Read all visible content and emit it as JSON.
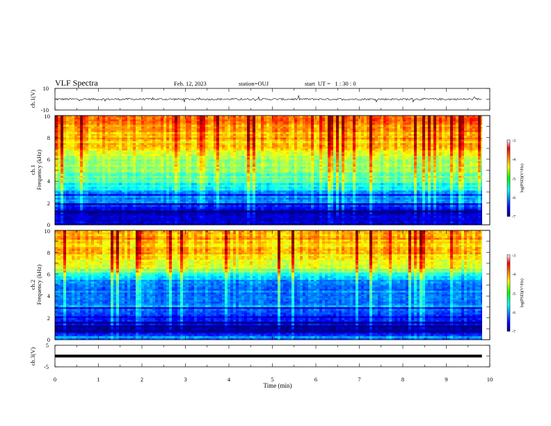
{
  "header": {
    "title": "VLF Spectra",
    "date": "Feb. 12, 2023",
    "station": "station=OUJ",
    "start": "start  UT =   1 : 30 : 0"
  },
  "chart_data": [
    {
      "type": "line",
      "panel": "ch1-waveform",
      "ylabel": "ch.1(V)",
      "ylim": [
        -10,
        10
      ],
      "y_ticks": [
        "10",
        "-10"
      ],
      "x_range": [
        0,
        10
      ],
      "data_end": 9.82,
      "baseline": 0,
      "trace_color": "#000000"
    },
    {
      "type": "heatmap",
      "panel": "ch1-spectrogram",
      "ylabel_line1": "ch.1",
      "ylabel_line2": "Frequency (kHz)",
      "ylim": [
        0,
        10
      ],
      "y_ticks": [
        "0",
        "2",
        "4",
        "6",
        "8",
        "10"
      ],
      "x_range": [
        0,
        10
      ],
      "data_end": 9.82,
      "colorbar": {
        "ticks": [
          "-3",
          "-4",
          "-5",
          "-6",
          "-7"
        ],
        "label": "log(PSD)(V²/Hz)",
        "range": [
          -7,
          -3
        ]
      },
      "level_by_frequency_khz": [
        [
          0,
          -6.6
        ],
        [
          1.2,
          -6.9
        ],
        [
          2,
          -6.1
        ],
        [
          3,
          -5.8
        ],
        [
          4,
          -5.2
        ],
        [
          5,
          -5.0
        ],
        [
          6,
          -4.7
        ],
        [
          7,
          -4.4
        ],
        [
          8,
          -4.2
        ],
        [
          10,
          -4.0
        ]
      ]
    },
    {
      "type": "heatmap",
      "panel": "ch2-spectrogram",
      "ylabel_line1": "ch.2",
      "ylabel_line2": "Frequency (kHz)",
      "ylim": [
        0,
        10
      ],
      "y_ticks": [
        "0",
        "2",
        "4",
        "6",
        "8",
        "10"
      ],
      "x_range": [
        0,
        10
      ],
      "data_end": 9.82,
      "colorbar": {
        "ticks": [
          "-3",
          "-4",
          "-5",
          "-6",
          "-7"
        ],
        "label": "log(PSD)(V²/Hz)",
        "range": [
          -7,
          -3
        ]
      },
      "level_by_frequency_khz": [
        [
          0,
          -5.6
        ],
        [
          1,
          -6.9
        ],
        [
          2,
          -6.2
        ],
        [
          3,
          -5.9
        ],
        [
          4,
          -6.0
        ],
        [
          5,
          -6.1
        ],
        [
          6,
          -5.4
        ],
        [
          6.6,
          -4.6
        ],
        [
          8,
          -4.3
        ],
        [
          10,
          -4.1
        ]
      ]
    },
    {
      "type": "line",
      "panel": "ch3-waveform",
      "ylabel": "ch.3(V)",
      "ylim": [
        -5,
        5
      ],
      "y_ticks": [
        "5",
        "0",
        "-5"
      ],
      "x_range": [
        0,
        10
      ],
      "data_end": 9.82,
      "baseline": 0,
      "trace_color": "#000000"
    }
  ],
  "x_axis": {
    "label": "Time (min)",
    "ticks": [
      "0",
      "1",
      "2",
      "3",
      "4",
      "5",
      "6",
      "7",
      "8",
      "9",
      "10"
    ]
  }
}
